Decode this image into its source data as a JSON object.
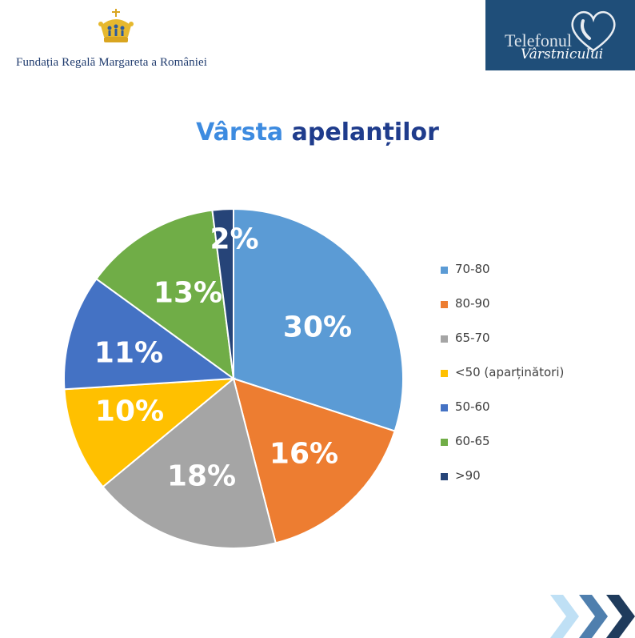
{
  "header": {
    "foundation_name": "Fundația Regală Margareta a României",
    "hotline_line1": "Telefonul",
    "hotline_line2": "Vârstnicului"
  },
  "title": {
    "part1": "Vârsta",
    "part2": "apelanților",
    "part1_color": "#3d8be0",
    "part2_color": "#1f3c8c"
  },
  "chart_data": {
    "type": "pie",
    "title": "Vârsta apelanților",
    "legend_position": "right",
    "slices": [
      {
        "label": "70-80",
        "value": 30,
        "display": "30%",
        "color": "#5b9bd5"
      },
      {
        "label": "80-90",
        "value": 16,
        "display": "16%",
        "color": "#ed7d31"
      },
      {
        "label": "65-70",
        "value": 18,
        "display": "18%",
        "color": "#a5a5a5"
      },
      {
        "label": "<50 (aparținători)",
        "value": 10,
        "display": "10%",
        "color": "#ffc000"
      },
      {
        "label": "50-60",
        "value": 11,
        "display": "11%",
        "color": "#4472c4"
      },
      {
        "label": "60-65",
        "value": 13,
        "display": "13%",
        "color": "#70ad47"
      },
      {
        "label": ">90",
        "value": 2,
        "display": "2%",
        "color": "#264478"
      }
    ]
  }
}
